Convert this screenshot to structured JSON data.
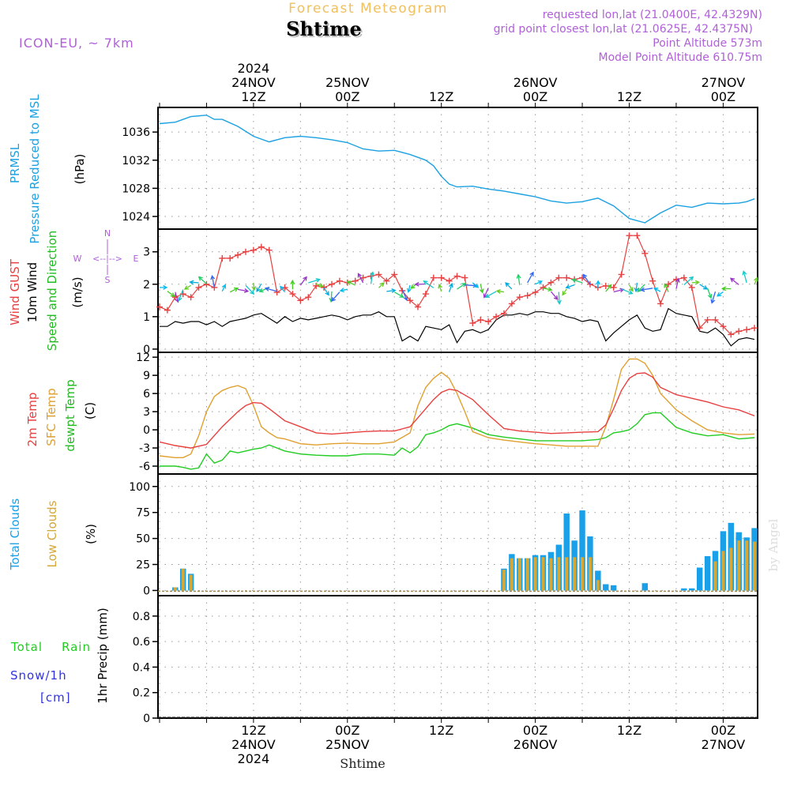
{
  "header": {
    "title": "Forecast Meteogram",
    "location": "Shtime",
    "model": "ICON-EU, ~ 7km",
    "requested": "requested lon,lat (21.0400E, 42.4329N)",
    "gridpoint": "grid point closest lon,lat (21.0625E, 42.4375N)",
    "point_alt": "Point Altitude 573m",
    "model_alt": "Model Point Altitude 610.75m",
    "credit": "by Angel",
    "footer_location": "Shtime"
  },
  "colors": {
    "pressure": "#1ba1e2",
    "gust": "#e84040",
    "wind": "#000000",
    "temp": "#e84040",
    "sfc": "#e0a030",
    "dew": "#22cc22",
    "tcc": "#1aa0e8",
    "lcc": "#d4a838",
    "rain": "#22cc22",
    "snow": "#3333dd",
    "purple": "#b060d8",
    "title": "#f0c060"
  },
  "time_axis": {
    "top": [
      {
        "t": 12,
        "lines": [
          "2024",
          "24NOV",
          "12Z"
        ]
      },
      {
        "t": 24,
        "lines": [
          "25NOV",
          "00Z"
        ]
      },
      {
        "t": 36,
        "lines": [
          "12Z"
        ]
      },
      {
        "t": 48,
        "lines": [
          "26NOV",
          "00Z"
        ]
      },
      {
        "t": 60,
        "lines": [
          "12Z"
        ]
      },
      {
        "t": 72,
        "lines": [
          "27NOV",
          "00Z"
        ]
      }
    ],
    "bottom": [
      {
        "t": 12,
        "lines": [
          "12Z",
          "24NOV",
          "2024"
        ]
      },
      {
        "t": 24,
        "lines": [
          "00Z",
          "25NOV"
        ]
      },
      {
        "t": 36,
        "lines": [
          "12Z"
        ]
      },
      {
        "t": 48,
        "lines": [
          "00Z",
          "26NOV"
        ]
      },
      {
        "t": 60,
        "lines": [
          "12Z"
        ]
      },
      {
        "t": 72,
        "lines": [
          "00Z",
          "27NOV"
        ]
      }
    ]
  },
  "chart_data": [
    {
      "type": "line",
      "title": "PRMSL Pressure Reduced to MSL",
      "ylabel": "(hPa)",
      "labels": [
        "PRMSL",
        "Pressure Reduced to MSL"
      ],
      "yticks": [
        "1024",
        "1028",
        "1032",
        "1036"
      ],
      "ylim": [
        1022.2,
        1039.5
      ],
      "series": [
        {
          "name": "Pressure",
          "x": [
            0,
            2,
            4,
            6,
            7,
            8,
            10,
            12,
            14,
            16,
            18,
            20,
            22,
            24,
            26,
            28,
            30,
            32,
            34,
            35,
            36,
            37,
            38,
            40,
            42,
            44,
            46,
            48,
            50,
            52,
            54,
            56,
            58,
            60,
            62,
            64,
            66,
            68,
            70,
            72,
            74,
            75,
            76
          ],
          "values": [
            1037.2,
            1037.4,
            1038.2,
            1038.4,
            1037.8,
            1037.8,
            1036.8,
            1035.4,
            1034.6,
            1035.2,
            1035.4,
            1035.2,
            1034.9,
            1034.5,
            1033.6,
            1033.3,
            1033.4,
            1032.8,
            1032,
            1031.2,
            1029.7,
            1028.6,
            1028.2,
            1028.3,
            1027.9,
            1027.6,
            1027.2,
            1026.8,
            1026.2,
            1025.9,
            1026.1,
            1026.6,
            1025.5,
            1023.7,
            1023.1,
            1024.5,
            1025.6,
            1025.3,
            1025.9,
            1025.8,
            1025.9,
            1026.1,
            1026.5
          ]
        }
      ]
    },
    {
      "type": "line",
      "title": "Wind GUST / 10m Wind Speed and Direction",
      "ylabel": "(m/s)",
      "labels": [
        "Wind GUST",
        "10m Wind",
        "Speed and Direction"
      ],
      "compass": [
        "N",
        "W",
        "E",
        "S"
      ],
      "yticks": [
        "0",
        "1",
        "2",
        "3"
      ],
      "ylim": [
        -0.1,
        3.7
      ],
      "series": [
        {
          "name": "Wind GUST",
          "x": [
            0,
            1,
            2,
            3,
            4,
            5,
            6,
            7,
            8,
            9,
            10,
            11,
            12,
            13,
            14,
            15,
            16,
            17,
            18,
            19,
            20,
            21,
            22,
            23,
            24,
            25,
            26,
            27,
            28,
            29,
            30,
            31,
            32,
            33,
            34,
            35,
            36,
            37,
            38,
            39,
            40,
            41,
            42,
            43,
            44,
            45,
            46,
            47,
            48,
            49,
            50,
            51,
            52,
            53,
            54,
            55,
            56,
            57,
            58,
            59,
            60,
            61,
            62,
            63,
            64,
            65,
            66,
            67,
            68,
            69,
            70,
            71,
            72,
            73,
            74,
            75,
            76
          ],
          "values": [
            1.3,
            1.2,
            1.6,
            1.7,
            1.6,
            1.9,
            2.0,
            1.9,
            2.8,
            2.8,
            2.9,
            3.0,
            3.05,
            3.15,
            3.05,
            1.75,
            1.9,
            1.7,
            1.5,
            1.6,
            1.95,
            1.9,
            2.0,
            2.1,
            2.05,
            2.1,
            2.2,
            2.25,
            2.3,
            2.1,
            2.3,
            1.8,
            1.5,
            1.3,
            1.7,
            2.2,
            2.2,
            2.1,
            2.25,
            2.2,
            0.8,
            0.9,
            0.85,
            1.0,
            1.1,
            1.4,
            1.6,
            1.65,
            1.75,
            1.9,
            2.05,
            2.2,
            2.2,
            2.15,
            2.2,
            2.0,
            1.9,
            1.95,
            1.9,
            2.3,
            3.5,
            3.5,
            2.95,
            2.1,
            1.4,
            2.0,
            2.15,
            2.2,
            1.9,
            0.65,
            0.9,
            0.9,
            0.7,
            0.45,
            0.55,
            0.6,
            0.65
          ]
        },
        {
          "name": "10m Wind",
          "x": [
            0,
            1,
            2,
            3,
            4,
            5,
            6,
            7,
            8,
            9,
            10,
            11,
            12,
            13,
            14,
            15,
            16,
            17,
            18,
            19,
            20,
            21,
            22,
            23,
            24,
            25,
            26,
            27,
            28,
            29,
            30,
            31,
            32,
            33,
            34,
            35,
            36,
            37,
            38,
            39,
            40,
            41,
            42,
            43,
            44,
            45,
            46,
            47,
            48,
            49,
            50,
            51,
            52,
            53,
            54,
            55,
            56,
            57,
            58,
            59,
            60,
            61,
            62,
            63,
            64,
            65,
            66,
            67,
            68,
            69,
            70,
            71,
            72,
            73,
            74,
            75,
            76
          ],
          "values": [
            0.7,
            0.7,
            0.85,
            0.8,
            0.85,
            0.85,
            0.75,
            0.85,
            0.7,
            0.85,
            0.9,
            0.95,
            1.05,
            1.1,
            0.95,
            0.8,
            1.0,
            0.85,
            0.95,
            0.9,
            0.95,
            1.0,
            1.05,
            1.0,
            0.9,
            1.0,
            1.05,
            1.05,
            1.15,
            1.0,
            1.0,
            0.25,
            0.4,
            0.25,
            0.7,
            0.65,
            0.6,
            0.75,
            0.2,
            0.55,
            0.6,
            0.5,
            0.6,
            0.9,
            1.05,
            1.05,
            1.1,
            1.05,
            1.15,
            1.15,
            1.1,
            1.1,
            1.0,
            0.95,
            0.85,
            0.9,
            0.85,
            0.25,
            0.5,
            0.7,
            0.9,
            1.05,
            0.65,
            0.55,
            0.6,
            1.25,
            1.1,
            1.05,
            1.0,
            0.55,
            0.5,
            0.65,
            0.45,
            0.1,
            0.3,
            0.35,
            0.3
          ]
        }
      ]
    },
    {
      "type": "line",
      "title": "2m Temp / SFC Temp / dewpt Temp",
      "ylabel": "(C)",
      "labels": [
        "2m Temp",
        "SFC Temp",
        "dewpt Temp"
      ],
      "yticks": [
        "-6",
        "-3",
        "0",
        "3",
        "6",
        "9",
        "12"
      ],
      "ylim": [
        -7.3,
        12.8
      ],
      "series": [
        {
          "name": "2m Temp",
          "x": [
            0,
            2,
            4,
            6,
            8,
            10,
            11,
            12,
            13,
            14,
            15,
            16,
            18,
            20,
            22,
            24,
            26,
            28,
            30,
            32,
            34,
            35,
            36,
            37,
            38,
            40,
            42,
            44,
            46,
            48,
            50,
            52,
            54,
            56,
            57,
            58,
            59,
            60,
            61,
            62,
            63,
            64,
            66,
            68,
            70,
            72,
            74,
            76
          ],
          "values": [
            -2,
            -2.6,
            -3,
            -2.4,
            0.5,
            3,
            4,
            4.5,
            4.4,
            3.5,
            2.5,
            1.5,
            0.5,
            -0.5,
            -0.7,
            -0.5,
            -0.3,
            -0.2,
            -0.2,
            0.5,
            3.5,
            5,
            6.2,
            6.7,
            6.5,
            5,
            2.5,
            0.2,
            -0.2,
            -0.4,
            -0.6,
            -0.5,
            -0.4,
            -0.3,
            0.8,
            3.5,
            6.5,
            8.5,
            9.3,
            9.4,
            8.7,
            7,
            5.8,
            5.2,
            4.6,
            3.8,
            3.3,
            2.3
          ]
        },
        {
          "name": "SFC Temp",
          "x": [
            0,
            2,
            3,
            4,
            5,
            6,
            7,
            8,
            9,
            10,
            11,
            12,
            13,
            14,
            15,
            16,
            18,
            20,
            22,
            24,
            26,
            28,
            30,
            32,
            33,
            34,
            35,
            36,
            37,
            38,
            39,
            40,
            42,
            44,
            46,
            48,
            50,
            52,
            54,
            56,
            57,
            58,
            59,
            60,
            61,
            62,
            63,
            64,
            66,
            68,
            70,
            72,
            74,
            76
          ],
          "values": [
            -4.3,
            -4.6,
            -4.6,
            -4,
            -1,
            3,
            5.5,
            6.5,
            7,
            7.3,
            6.8,
            4,
            0.5,
            -0.5,
            -1.3,
            -1.5,
            -2.3,
            -2.5,
            -2.3,
            -2.2,
            -2.3,
            -2.3,
            -2.0,
            -0.5,
            4,
            7,
            8.5,
            9.5,
            8.5,
            6,
            3,
            -0.3,
            -1.3,
            -1.7,
            -2.0,
            -2.3,
            -2.5,
            -2.7,
            -2.7,
            -2.7,
            0.5,
            5,
            10,
            11.7,
            11.7,
            11,
            9,
            6,
            3.3,
            1.5,
            0,
            -0.5,
            -0.8,
            -0.7
          ]
        },
        {
          "name": "dewpt Temp",
          "x": [
            0,
            2,
            3,
            4,
            5,
            6,
            7,
            8,
            9,
            10,
            11,
            12,
            13,
            14,
            16,
            18,
            20,
            22,
            24,
            26,
            28,
            30,
            31,
            32,
            33,
            34,
            35,
            36,
            37,
            38,
            40,
            42,
            44,
            46,
            48,
            50,
            52,
            54,
            56,
            57,
            58,
            59,
            60,
            61,
            62,
            63,
            64,
            66,
            68,
            70,
            72,
            74,
            76
          ],
          "values": [
            -6.0,
            -6.0,
            -6.2,
            -6.5,
            -6.3,
            -4,
            -5.5,
            -5,
            -3.5,
            -3.8,
            -3.5,
            -3.2,
            -3,
            -2.5,
            -3.5,
            -4,
            -4.2,
            -4.3,
            -4.3,
            -4,
            -4.0,
            -4.2,
            -3,
            -3.8,
            -2.8,
            -0.8,
            -0.5,
            0,
            0.7,
            1,
            0.3,
            -0.8,
            -1.2,
            -1.5,
            -1.8,
            -1.8,
            -1.8,
            -1.8,
            -1.6,
            -1.3,
            -0.5,
            -0.3,
            0,
            1,
            2.5,
            2.8,
            2.8,
            0.4,
            -0.5,
            -1,
            -0.8,
            -1.5,
            -1.3
          ]
        }
      ]
    },
    {
      "type": "bar",
      "title": "Total Clouds / Low Clouds",
      "ylabel": "(%)",
      "labels": [
        "Total Clouds",
        "Low Clouds"
      ],
      "yticks": [
        "0",
        "25",
        "50",
        "75",
        "100"
      ],
      "ylim": [
        -5,
        112
      ],
      "series": [
        {
          "name": "Total Clouds",
          "x": [
            2,
            3,
            4,
            44,
            45,
            46,
            47,
            48,
            49,
            50,
            51,
            52,
            53,
            54,
            55,
            56,
            57,
            58,
            59,
            60,
            62,
            64,
            67,
            68,
            69,
            70,
            71,
            72,
            73,
            74,
            75,
            76
          ],
          "values": [
            3,
            21,
            16,
            21,
            35,
            31,
            31,
            34,
            34,
            37,
            44,
            74,
            48,
            77,
            52,
            19,
            6,
            5,
            0,
            0,
            7,
            0,
            2,
            2,
            22,
            33,
            38,
            57,
            65,
            56,
            51,
            60
          ]
        },
        {
          "name": "Low Clouds",
          "x": [
            2,
            3,
            4,
            44,
            45,
            46,
            47,
            48,
            49,
            50,
            51,
            52,
            53,
            54,
            55,
            56,
            57,
            58,
            59,
            60,
            62,
            64,
            67,
            68,
            69,
            70,
            71,
            72,
            73,
            74,
            75,
            76
          ],
          "values": [
            3,
            21,
            15,
            20,
            31,
            31,
            31,
            32,
            32,
            31,
            32,
            32,
            32,
            32,
            32,
            10,
            0,
            0,
            0,
            0,
            0,
            0,
            0,
            0,
            0,
            0,
            28,
            38,
            41,
            48,
            48,
            47
          ]
        }
      ]
    },
    {
      "type": "bar",
      "title": "1hr Precip",
      "ylabel": "1hr Precip (mm)",
      "labels": [
        "Total",
        "Rain",
        "Snow/1h",
        "[cm]"
      ],
      "yticks": [
        "0",
        "0.2",
        "0.4",
        "0.6",
        "0.8"
      ],
      "ylim": [
        0,
        0.96
      ],
      "series": [
        {
          "name": "Total Rain",
          "x": [],
          "values": []
        },
        {
          "name": "Snow/1h",
          "x": [],
          "values": []
        }
      ]
    }
  ]
}
